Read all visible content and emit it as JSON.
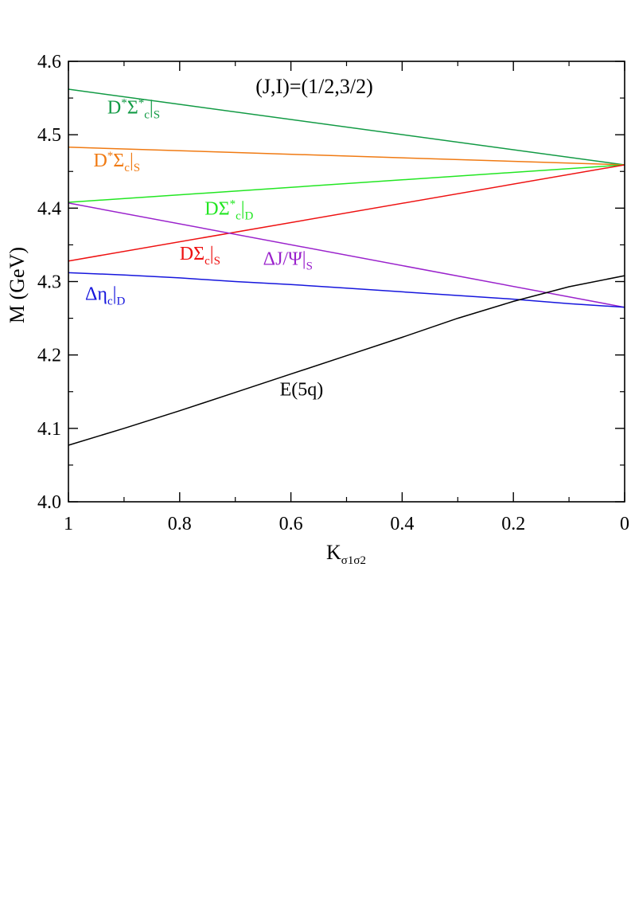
{
  "chart_data": {
    "type": "line",
    "title": "(J,I)=(1/2,3/2)",
    "xlabel": "K",
    "xlabel_sub": "σ1σ2",
    "ylabel": "M (GeV)",
    "xlim": [
      1,
      0
    ],
    "ylim": [
      4.0,
      4.6
    ],
    "x_reversed": true,
    "grid": false,
    "x_ticks": [
      {
        "value": 1,
        "label": "1"
      },
      {
        "value": 0.8,
        "label": "0.8"
      },
      {
        "value": 0.6,
        "label": "0.6"
      },
      {
        "value": 0.4,
        "label": "0.4"
      },
      {
        "value": 0.2,
        "label": "0.2"
      },
      {
        "value": 0,
        "label": "0"
      }
    ],
    "y_ticks": [
      {
        "value": 4.0,
        "label": "4.0"
      },
      {
        "value": 4.1,
        "label": "4.1"
      },
      {
        "value": 4.2,
        "label": "4.2"
      },
      {
        "value": 4.3,
        "label": "4.3"
      },
      {
        "value": 4.4,
        "label": "4.4"
      },
      {
        "value": 4.5,
        "label": "4.5"
      },
      {
        "value": 4.6,
        "label": "4.6"
      }
    ],
    "series": [
      {
        "id": "dstar-sigmastar-s",
        "color": "#119a44",
        "label": {
          "main": "D",
          "sup1": "*",
          "mid": "Σ",
          "sup2": "*",
          "sub1": "c",
          "bar": "|",
          "sub2": "S"
        },
        "label_pos": {
          "x": 0.93,
          "y": 4.529
        },
        "x": [
          1,
          0
        ],
        "y": [
          4.562,
          4.459
        ]
      },
      {
        "id": "dstar-sigma-s",
        "color": "#f07a12",
        "label": {
          "main": "D",
          "sup1": "*",
          "mid": "Σ",
          "sub1": "c",
          "bar": "|",
          "sub2": "S"
        },
        "label_pos": {
          "x": 0.955,
          "y": 4.457
        },
        "x": [
          1,
          0
        ],
        "y": [
          4.483,
          4.459
        ]
      },
      {
        "id": "d-sigmastar-d",
        "color": "#22e622",
        "label": {
          "main": "DΣ",
          "sup2": "*",
          "sub1": "c",
          "bar": "|",
          "sub2": "D"
        },
        "label_pos": {
          "x": 0.755,
          "y": 4.391
        },
        "x": [
          1,
          0
        ],
        "y": [
          4.408,
          4.459
        ]
      },
      {
        "id": "d-sigma-s",
        "color": "#ee1111",
        "label": {
          "main": "DΣ",
          "sub1": "c",
          "bar": "|",
          "sub2": "S"
        },
        "label_pos": {
          "x": 0.8,
          "y": 4.33
        },
        "x": [
          1,
          0
        ],
        "y": [
          4.328,
          4.459
        ]
      },
      {
        "id": "delta-jpsi-s",
        "color": "#9a22cc",
        "label": {
          "main": "ΔJ/Ψ",
          "bar": "|",
          "sub2": "S"
        },
        "label_pos": {
          "x": 0.65,
          "y": 4.323
        },
        "x": [
          1,
          0
        ],
        "y": [
          4.407,
          4.265
        ]
      },
      {
        "id": "delta-etac-d",
        "color": "#1616dd",
        "label": {
          "main": "Δη",
          "sub1": "c",
          "bar": "|",
          "sub2": "D"
        },
        "label_pos": {
          "x": 0.97,
          "y": 4.275
        },
        "x": [
          1,
          0.9,
          0.8,
          0.7,
          0.6,
          0.5,
          0.4,
          0.3,
          0.2,
          0.1,
          0
        ],
        "y": [
          4.312,
          4.309,
          4.305,
          4.3,
          4.296,
          4.291,
          4.286,
          4.281,
          4.276,
          4.27,
          4.265
        ]
      },
      {
        "id": "e-5q",
        "color": "#000000",
        "label": {
          "main": "E(5q)"
        },
        "label_pos": {
          "x": 0.62,
          "y": 4.145
        },
        "x": [
          1,
          0.9,
          0.8,
          0.7,
          0.6,
          0.5,
          0.4,
          0.3,
          0.2,
          0.1,
          0
        ],
        "y": [
          4.077,
          4.1,
          4.124,
          4.149,
          4.174,
          4.199,
          4.224,
          4.25,
          4.273,
          4.293,
          4.308
        ]
      }
    ]
  }
}
